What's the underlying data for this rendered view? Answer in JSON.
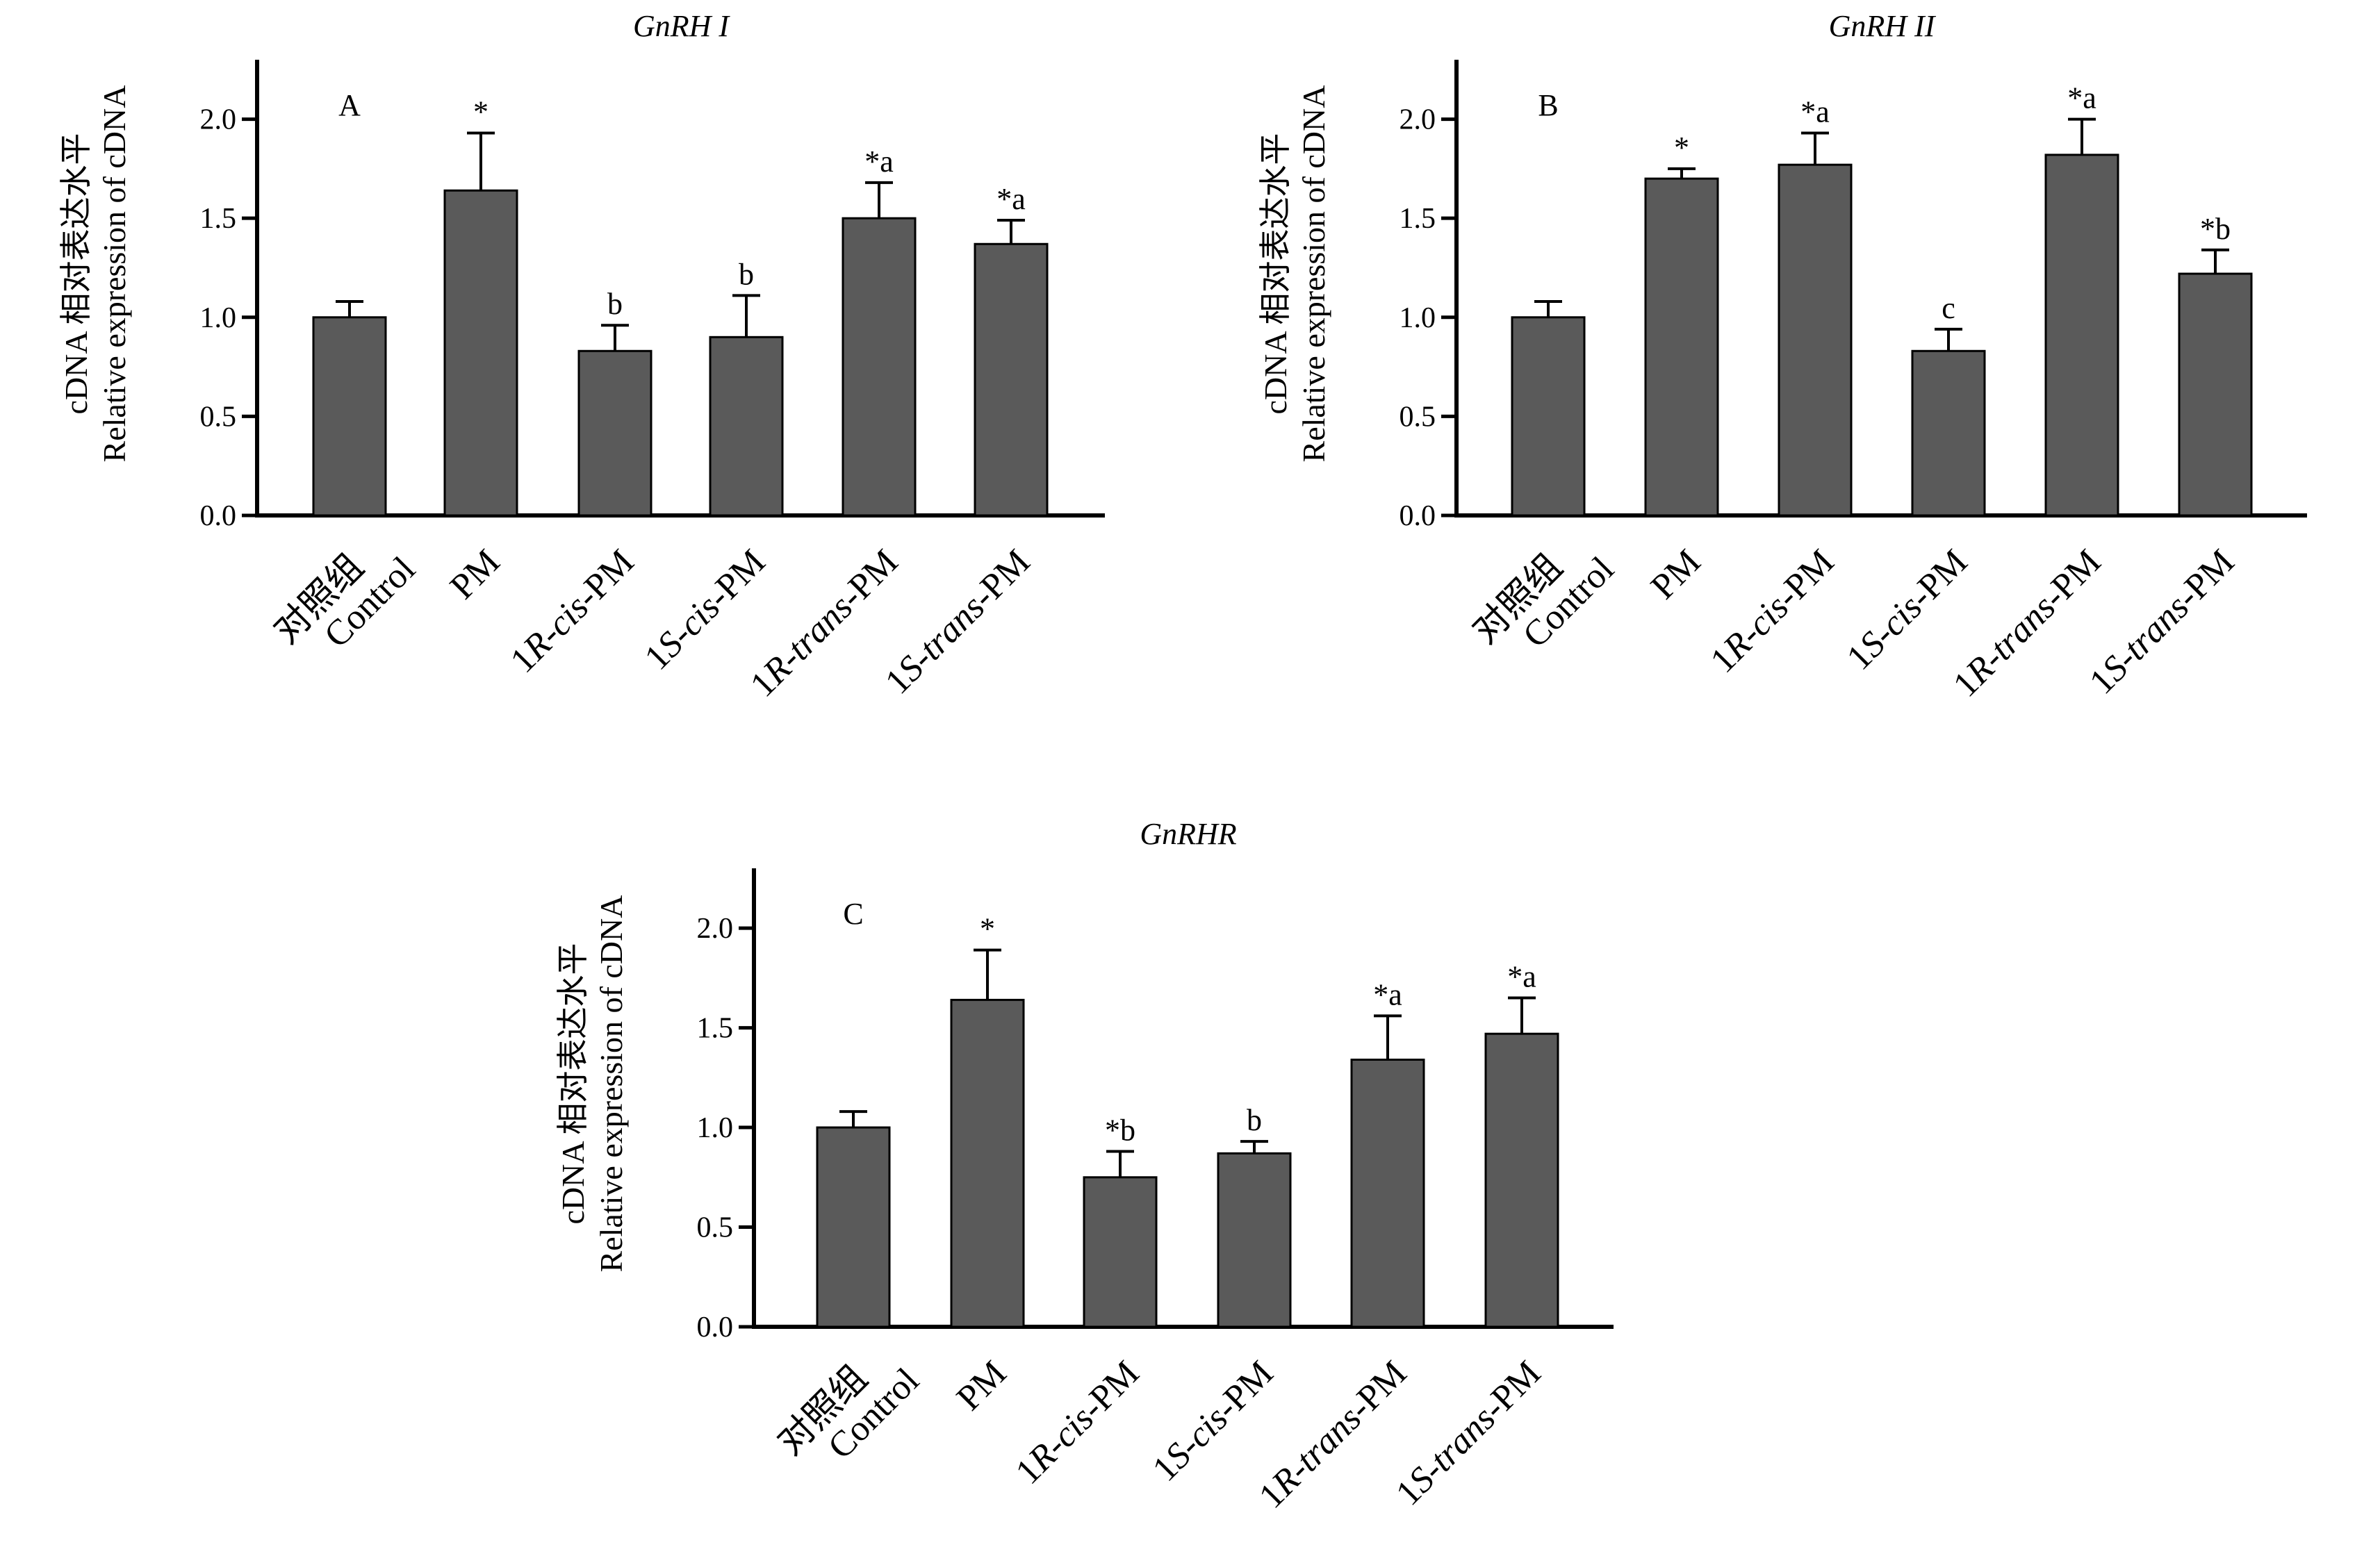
{
  "style": {
    "bar_color": "#5a5a5a",
    "axis_color": "#000000"
  },
  "categories": [
    {
      "zh": "对照组",
      "en": "Control",
      "prefix": "",
      "italic": "",
      "suffix": ""
    },
    {
      "zh": "",
      "en": "",
      "prefix": "PM",
      "italic": "",
      "suffix": ""
    },
    {
      "zh": "",
      "en": "",
      "prefix": "1",
      "italic": "R-cis",
      "suffix": "-PM"
    },
    {
      "zh": "",
      "en": "",
      "prefix": "1",
      "italic": "S-cis",
      "suffix": "-PM"
    },
    {
      "zh": "",
      "en": "",
      "prefix": "1",
      "italic": "R-trans",
      "suffix": "-PM"
    },
    {
      "zh": "",
      "en": "",
      "prefix": "1",
      "italic": "S-trans",
      "suffix": "-PM"
    }
  ],
  "ylabel_zh": "cDNA 相对表达水平",
  "ylabel_en": "Relative expression of cDNA",
  "chart_data": [
    {
      "type": "bar",
      "title": "GnRH I",
      "panel": "A",
      "categories": [
        "对照组 Control",
        "PM",
        "1R-cis-PM",
        "1S-cis-PM",
        "1R-trans-PM",
        "1S-trans-PM"
      ],
      "values": [
        1.0,
        1.64,
        0.83,
        0.9,
        1.5,
        1.37
      ],
      "errors": [
        0.08,
        0.29,
        0.13,
        0.21,
        0.18,
        0.12
      ],
      "labels": [
        "",
        "*",
        "b",
        "b",
        "*a",
        "*a"
      ],
      "ylim": [
        0,
        2.3
      ],
      "yticks": [
        "0.0",
        "0.5",
        "1.0",
        "1.5",
        "2.0"
      ],
      "ylabel": "cDNA 相对表达水平 Relative expression of cDNA",
      "xlabel": ""
    },
    {
      "type": "bar",
      "title": "GnRH II",
      "panel": "B",
      "categories": [
        "对照组 Control",
        "PM",
        "1R-cis-PM",
        "1S-cis-PM",
        "1R-trans-PM",
        "1S-trans-PM"
      ],
      "values": [
        1.0,
        1.7,
        1.77,
        0.83,
        1.82,
        1.22
      ],
      "errors": [
        0.08,
        0.05,
        0.16,
        0.11,
        0.18,
        0.12
      ],
      "labels": [
        "",
        "*",
        "*a",
        "c",
        "*a",
        "*b"
      ],
      "ylim": [
        0,
        2.3
      ],
      "yticks": [
        "0.0",
        "0.5",
        "1.0",
        "1.5",
        "2.0"
      ],
      "ylabel": "cDNA 相对表达水平 Relative expression of cDNA",
      "xlabel": ""
    },
    {
      "type": "bar",
      "title": "GnRHR",
      "panel": "C",
      "categories": [
        "对照组 Control",
        "PM",
        "1R-cis-PM",
        "1S-cis-PM",
        "1R-trans-PM",
        "1S-trans-PM"
      ],
      "values": [
        1.0,
        1.64,
        0.75,
        0.87,
        1.34,
        1.47
      ],
      "errors": [
        0.08,
        0.25,
        0.13,
        0.06,
        0.22,
        0.18
      ],
      "labels": [
        "",
        "*",
        "*b",
        "b",
        "*a",
        "*a"
      ],
      "ylim": [
        0,
        2.3
      ],
      "yticks": [
        "0.0",
        "0.5",
        "1.0",
        "1.5",
        "2.0"
      ],
      "ylabel": "cDNA 相对表达水平 Relative expression of cDNA",
      "xlabel": ""
    }
  ]
}
